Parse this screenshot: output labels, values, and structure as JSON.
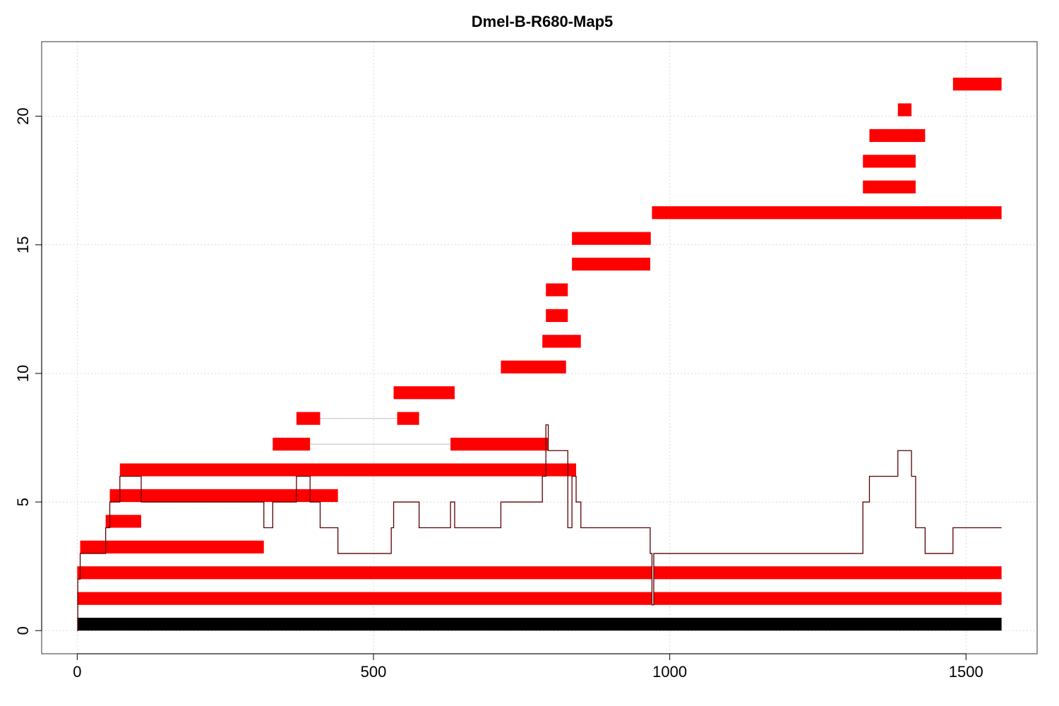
{
  "chart_data": {
    "type": "bar",
    "title": "Dmel-B-R680-Map5",
    "xlabel": "",
    "ylabel": "",
    "xlim": [
      -60,
      1620
    ],
    "ylim": [
      -0.9,
      22.9
    ],
    "x_ticks": [
      0,
      500,
      1000,
      1500
    ],
    "y_ticks": [
      0,
      5,
      10,
      15,
      20
    ],
    "grid": true,
    "colors": {
      "reference": "#000000",
      "segment": "#ff0000",
      "coverage": "#5a0000",
      "connector": "#c8c8c8"
    },
    "reference_bar": {
      "x_start": 0,
      "x_end": 1560,
      "y": 0.25
    },
    "segments": [
      {
        "x_start": 0,
        "x_end": 970,
        "y": 1.25
      },
      {
        "x_start": 973,
        "x_end": 1560,
        "y": 1.25
      },
      {
        "x_start": 0,
        "x_end": 970,
        "y": 2.25
      },
      {
        "x_start": 973,
        "x_end": 1560,
        "y": 2.25
      },
      {
        "x_start": 5,
        "x_end": 315,
        "y": 3.25
      },
      {
        "x_start": 48,
        "x_end": 108,
        "y": 4.25
      },
      {
        "x_start": 55,
        "x_end": 440,
        "y": 5.25
      },
      {
        "x_start": 72,
        "x_end": 842,
        "y": 6.25
      },
      {
        "x_start": 330,
        "x_end": 393,
        "y": 7.25
      },
      {
        "x_start": 630,
        "x_end": 795,
        "y": 7.25
      },
      {
        "x_start": 370,
        "x_end": 410,
        "y": 8.25
      },
      {
        "x_start": 540,
        "x_end": 577,
        "y": 8.25
      },
      {
        "x_start": 534,
        "x_end": 637,
        "y": 9.25
      },
      {
        "x_start": 715,
        "x_end": 825,
        "y": 10.25
      },
      {
        "x_start": 785,
        "x_end": 850,
        "y": 11.25
      },
      {
        "x_start": 791,
        "x_end": 828,
        "y": 12.25
      },
      {
        "x_start": 791,
        "x_end": 828,
        "y": 13.25
      },
      {
        "x_start": 835,
        "x_end": 967,
        "y": 14.25
      },
      {
        "x_start": 835,
        "x_end": 968,
        "y": 15.25
      },
      {
        "x_start": 970,
        "x_end": 1560,
        "y": 16.25
      },
      {
        "x_start": 1326,
        "x_end": 1415,
        "y": 17.25
      },
      {
        "x_start": 1326,
        "x_end": 1415,
        "y": 18.25
      },
      {
        "x_start": 1337,
        "x_end": 1431,
        "y": 19.25
      },
      {
        "x_start": 1385,
        "x_end": 1408,
        "y": 20.25
      },
      {
        "x_start": 1478,
        "x_end": 1560,
        "y": 21.25
      }
    ],
    "connectors": [
      {
        "x_start": 393,
        "x_end": 630,
        "y": 7.25
      },
      {
        "x_start": 410,
        "x_end": 540,
        "y": 8.25
      }
    ],
    "coverage": {
      "x": [
        0,
        1,
        5,
        48,
        55,
        72,
        108,
        315,
        330,
        370,
        393,
        410,
        440,
        530,
        534,
        540,
        577,
        630,
        637,
        715,
        785,
        791,
        795,
        828,
        835,
        842,
        850,
        967,
        970,
        973,
        1326,
        1337,
        1385,
        1408,
        1415,
        1431,
        1478,
        1560
      ],
      "y": [
        0,
        2,
        3,
        4,
        5,
        6,
        5,
        4,
        5,
        6,
        5,
        4,
        3,
        4,
        5,
        5,
        4,
        5,
        4,
        5,
        6,
        8,
        7,
        4,
        6,
        5,
        4,
        3,
        1,
        3,
        5,
        6,
        7,
        6,
        4,
        3,
        4,
        4
      ]
    }
  }
}
